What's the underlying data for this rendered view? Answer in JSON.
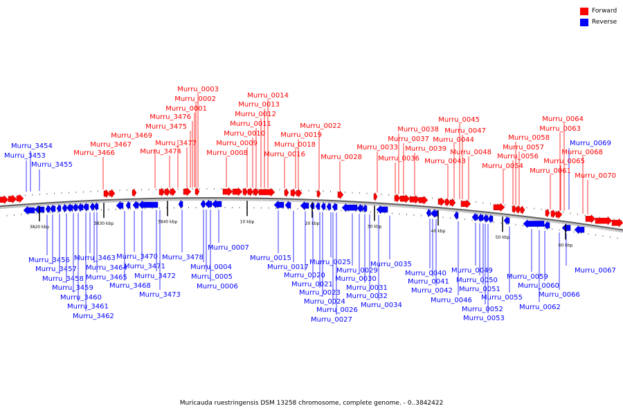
{
  "legend": {
    "forward": {
      "label": "Forward",
      "color": "#ff0000"
    },
    "reverse": {
      "label": "Reverse",
      "color": "#0000ff"
    }
  },
  "caption": "Muricauda ruestringensis DSM 13258 chromosome, complete genome. - 0..3842422",
  "scale_labels": [
    "3820 kbp",
    "3830 kbp",
    "3840 kbp",
    "10 kbp",
    "20 kbp",
    "30 kbp",
    "40 kbp",
    "50 kbp",
    "60 kbp"
  ],
  "forward_genes": [
    "Murru_0003",
    "Murru_0002",
    "Murru_0001",
    "Murru_3476",
    "Murru_3475",
    "Murru_3469",
    "Murru_3477",
    "Murru_3467",
    "Murru_3474",
    "Murru_3466",
    "Murru_0014",
    "Murru_0013",
    "Murru_0012",
    "Murru_0011",
    "Murru_0010",
    "Murru_0009",
    "Murru_0008",
    "Murru_0022",
    "Murru_0019",
    "Murru_0018",
    "Murru_0016",
    "Murru_0028",
    "Murru_0033",
    "Murru_0038",
    "Murru_0037",
    "Murru_0039",
    "Murru_0036",
    "Murru_0045",
    "Murru_0047",
    "Murru_0044",
    "Murru_0043",
    "Murru_0048",
    "Murru_0064",
    "Murru_0063",
    "Murru_0058",
    "Murru_0057",
    "Murru_0056",
    "Murru_0054",
    "Murru_0065",
    "Murru_0061",
    "Murru_0068",
    "Murru_0070"
  ],
  "reverse_genes": [
    "Murru_3454",
    "Murru_3453",
    "Murru_3455",
    "Murru_3456",
    "Murru_3457",
    "Murru_3458",
    "Murru_3459",
    "Murru_3460",
    "Murru_3461",
    "Murru_3462",
    "Murru_3463",
    "Murru_3464",
    "Murru_3465",
    "Murru_3470",
    "Murru_3471",
    "Murru_3468",
    "Murru_3472",
    "Murru_3473",
    "Murru_3478",
    "Murru_0007",
    "Murru_0004",
    "Murru_0005",
    "Murru_0006",
    "Murru_0015",
    "Murru_0017",
    "Murru_0020",
    "Murru_0021",
    "Murru_0023",
    "Murru_0024",
    "Murru_0025",
    "Murru_0026",
    "Murru_0027",
    "Murru_0029",
    "Murru_0030",
    "Murru_0031",
    "Murru_0032",
    "Murru_0034",
    "Murru_0035",
    "Murru_0040",
    "Murru_0041",
    "Murru_0042",
    "Murru_0046",
    "Murru_0049",
    "Murru_0050",
    "Murru_0051",
    "Murru_0052",
    "Murru_0053",
    "Murru_0055",
    "Murru_0059",
    "Murru_0060",
    "Murru_0062",
    "Murru_0066",
    "Murru_0067",
    "Murru_0069"
  ]
}
